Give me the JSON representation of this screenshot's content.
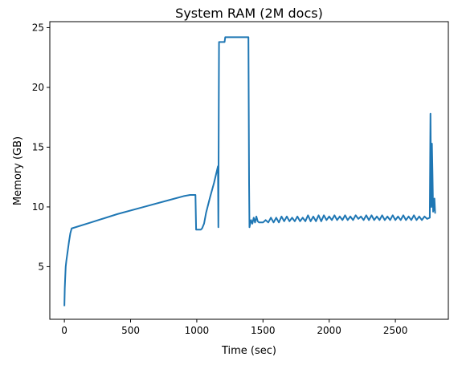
{
  "chart_data": {
    "type": "line",
    "title": "System RAM (2M docs)",
    "xlabel": "Time (sec)",
    "ylabel": "Memory (GB)",
    "xlim": [
      -110,
      2900
    ],
    "ylim": [
      0.6,
      25.5
    ],
    "xticks": [
      0,
      500,
      1000,
      1500,
      2000,
      2500
    ],
    "yticks": [
      5,
      10,
      15,
      20,
      25
    ],
    "grid": false,
    "legend": "none",
    "line_color": "#1f77b4",
    "series": [
      {
        "x": [
          0,
          3,
          6,
          10,
          15,
          25,
          35,
          45,
          55,
          200,
          400,
          600,
          800,
          900,
          950,
          990,
          995,
          1000,
          1015,
          1030,
          1040,
          1055,
          1070,
          1100,
          1130,
          1160,
          1163,
          1166,
          1168,
          1172,
          1180,
          1200,
          1210,
          1215,
          1240,
          1280,
          1320,
          1360,
          1390,
          1395,
          1398,
          1400,
          1410,
          1420,
          1430,
          1440,
          1450,
          1460,
          1470,
          1480,
          1500,
          1520,
          1540,
          1560,
          1580,
          1600,
          1620,
          1640,
          1660,
          1680,
          1700,
          1720,
          1740,
          1760,
          1780,
          1800,
          1820,
          1840,
          1860,
          1880,
          1900,
          1920,
          1940,
          1960,
          1980,
          2000,
          2020,
          2040,
          2060,
          2080,
          2100,
          2120,
          2140,
          2160,
          2180,
          2200,
          2220,
          2240,
          2260,
          2280,
          2300,
          2320,
          2340,
          2360,
          2380,
          2400,
          2420,
          2440,
          2460,
          2480,
          2500,
          2520,
          2540,
          2560,
          2580,
          2600,
          2620,
          2640,
          2660,
          2680,
          2700,
          2720,
          2740,
          2760,
          2765,
          2768,
          2772,
          2776,
          2780,
          2785,
          2790,
          2795,
          2800,
          2805
        ],
        "y": [
          1.7,
          3.2,
          4.0,
          5.0,
          5.5,
          6.3,
          7.1,
          7.8,
          8.2,
          8.7,
          9.4,
          10.0,
          10.6,
          10.9,
          11.0,
          11.0,
          8.1,
          8.1,
          8.1,
          8.1,
          8.2,
          8.6,
          9.5,
          10.8,
          12.0,
          13.4,
          8.3,
          18.0,
          23.8,
          23.8,
          23.8,
          23.8,
          23.8,
          24.2,
          24.2,
          24.2,
          24.2,
          24.2,
          24.2,
          12.0,
          8.3,
          8.4,
          8.9,
          8.6,
          9.1,
          8.7,
          9.2,
          8.8,
          8.7,
          8.7,
          8.7,
          8.9,
          8.7,
          9.1,
          8.7,
          9.1,
          8.7,
          9.2,
          8.8,
          9.2,
          8.8,
          9.1,
          8.8,
          9.2,
          8.8,
          9.1,
          8.8,
          9.3,
          8.8,
          9.2,
          8.8,
          9.3,
          8.8,
          9.3,
          8.9,
          9.2,
          8.9,
          9.3,
          8.9,
          9.2,
          8.9,
          9.3,
          8.9,
          9.2,
          8.9,
          9.3,
          9.0,
          9.2,
          8.9,
          9.3,
          8.9,
          9.3,
          8.9,
          9.2,
          8.9,
          9.3,
          8.9,
          9.2,
          8.9,
          9.3,
          8.9,
          9.2,
          8.9,
          9.3,
          8.9,
          9.2,
          8.9,
          9.3,
          8.9,
          9.2,
          8.9,
          9.2,
          9.0,
          9.1,
          17.8,
          14.0,
          10.0,
          15.3,
          13.0,
          9.6,
          9.8,
          10.7,
          9.5,
          9.5
        ]
      }
    ]
  }
}
